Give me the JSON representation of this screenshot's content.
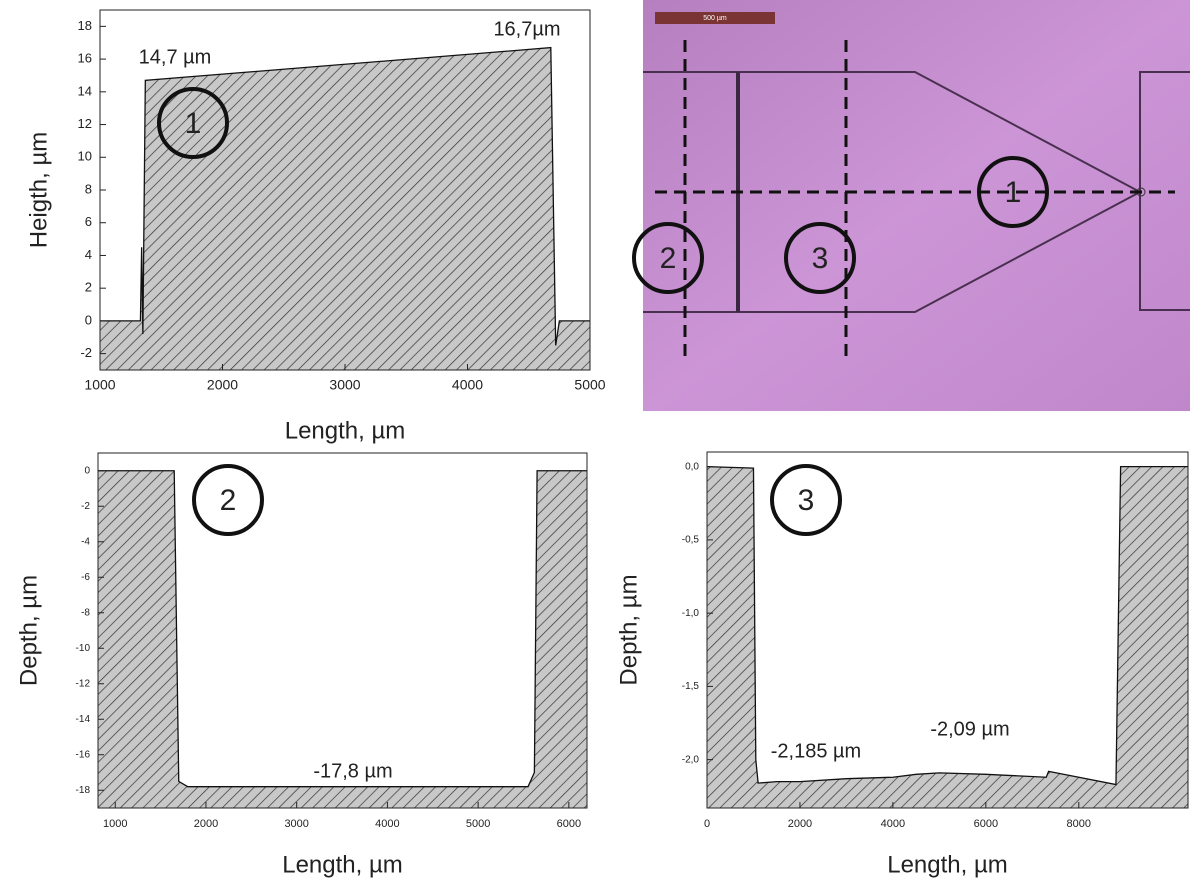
{
  "chart_data": [
    {
      "type": "area",
      "ylabel": "Heigth, µm",
      "xlabel": "Length, µm",
      "x": [
        1000,
        1330,
        1340,
        1350,
        1370,
        4680,
        4720,
        4750,
        5000
      ],
      "values": [
        0,
        0,
        4.5,
        -0.8,
        14.7,
        16.7,
        -1.5,
        0,
        0
      ],
      "color": "#c8c8c8",
      "xlim": [
        1000,
        5000
      ],
      "ylim": [
        -3,
        19
      ],
      "xticks": [
        1000,
        2000,
        3000,
        4000,
        5000
      ],
      "yticks": [
        -2,
        0,
        2,
        4,
        6,
        8,
        10,
        12,
        14,
        16,
        18
      ],
      "annotations": [
        "14,7 µm",
        "16,7µm"
      ],
      "marker_label": "1"
    },
    {
      "type": "area",
      "ylabel": "Depth, µm",
      "xlabel": "Length, µm",
      "x": [
        810,
        1650,
        1700,
        1800,
        5550,
        5620,
        5650,
        6200
      ],
      "values": [
        0,
        0,
        -17.5,
        -17.8,
        -17.8,
        -17,
        0,
        0
      ],
      "color": "#c8c8c8",
      "xlim": [
        810,
        6200
      ],
      "ylim": [
        -19,
        1
      ],
      "xticks": [
        1000,
        2000,
        3000,
        4000,
        5000,
        6000
      ],
      "yticks": [
        0,
        -2,
        -4,
        -6,
        -8,
        -10,
        -12,
        -14,
        -16,
        -18
      ],
      "annotations": [
        "-17,8 µm"
      ],
      "marker_label": "2"
    },
    {
      "type": "area",
      "ylabel": "Depth, µm",
      "xlabel": "Length, µm",
      "x": [
        0,
        1000,
        1050,
        1100,
        1500,
        2000,
        3000,
        4000,
        4500,
        5000,
        6000,
        7300,
        7350,
        8000,
        8800,
        8900,
        10350
      ],
      "values": [
        0,
        -0.01,
        -2.0,
        -2.16,
        -2.15,
        -2.15,
        -2.13,
        -2.12,
        -2.1,
        -2.09,
        -2.1,
        -2.12,
        -2.08,
        -2.12,
        -2.17,
        0,
        0
      ],
      "color": "#c8c8c8",
      "xlim": [
        0,
        10350
      ],
      "ylim": [
        -2.33,
        0.1
      ],
      "xticks": [
        0,
        2000,
        4000,
        6000,
        8000
      ],
      "yticks": [
        {
          "value": 0,
          "label": "0,0"
        },
        {
          "value": -0.5,
          "label": "-0,5"
        },
        {
          "value": -1,
          "label": "-1,0"
        },
        {
          "value": -1.5,
          "label": "-1,5"
        },
        {
          "value": -2,
          "label": "-2,0"
        }
      ],
      "annotations": [
        "-2,185 µm",
        "-2,09 µm"
      ],
      "marker_label": "3"
    }
  ],
  "micrograph": {
    "scale_bar": "500 µm",
    "labels": [
      "1",
      "2",
      "3"
    ]
  }
}
